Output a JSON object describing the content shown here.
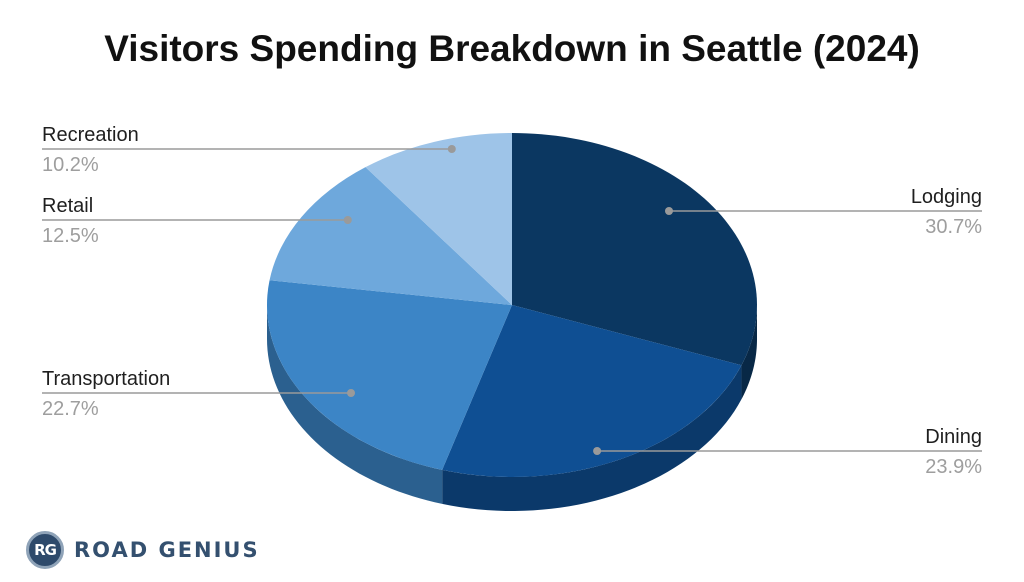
{
  "chart_data": {
    "type": "pie",
    "title": "Visitors Spending Breakdown in Seattle (2024)",
    "slices": [
      {
        "label": "Lodging",
        "pct_text": "30.7%",
        "value": 30.7,
        "color": "#0b3761"
      },
      {
        "label": "Dining",
        "pct_text": "23.9%",
        "value": 23.9,
        "color": "#0f4f93"
      },
      {
        "label": "Transportation",
        "pct_text": "22.7%",
        "value": 22.7,
        "color": "#3c85c6"
      },
      {
        "label": "Retail",
        "pct_text": "12.5%",
        "value": 12.5,
        "color": "#6ea8dc"
      },
      {
        "label": "Recreation",
        "pct_text": "10.2%",
        "value": 10.2,
        "color": "#9ec4e8"
      }
    ],
    "legend": "none",
    "style": "3d-pie"
  },
  "brand": {
    "mark": "RG",
    "name": "ROAD GENIUS"
  }
}
